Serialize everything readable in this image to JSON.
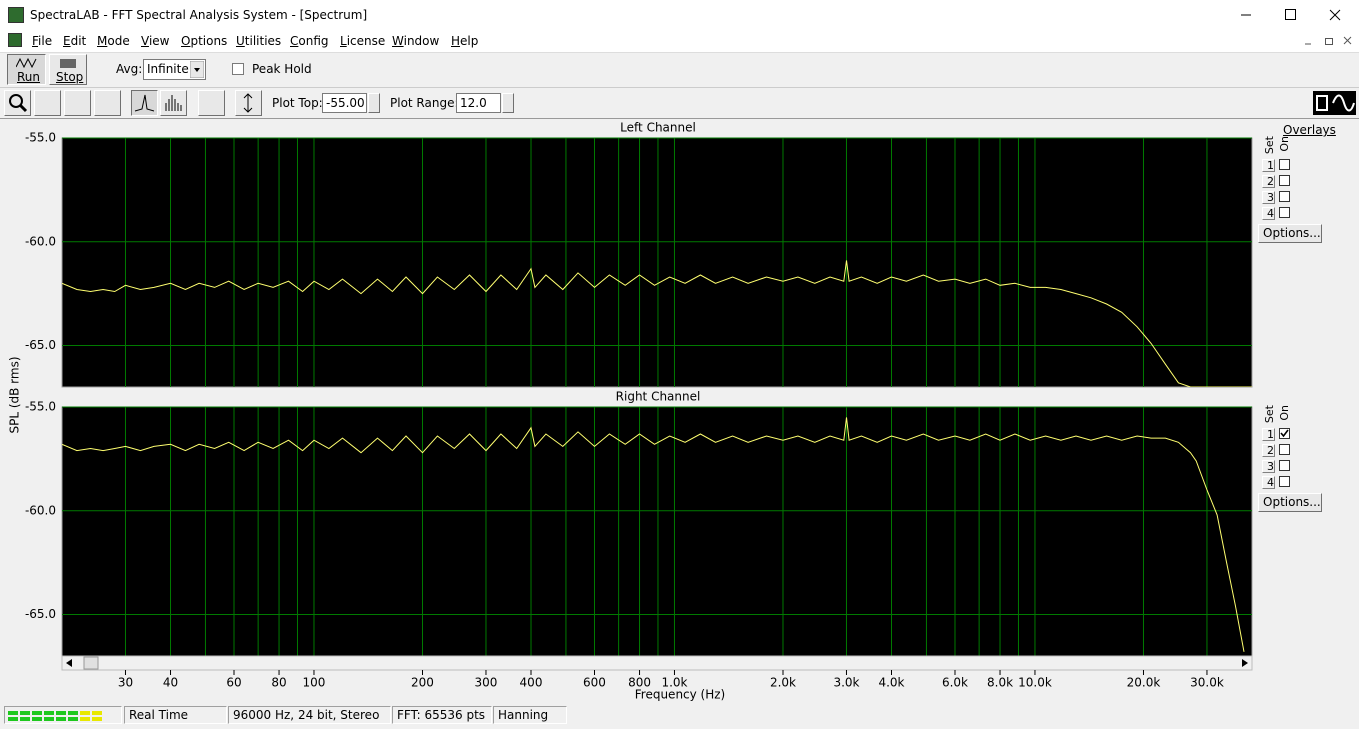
{
  "window": {
    "title": "SpectraLAB - FFT Spectral Analysis System - [Spectrum]"
  },
  "menu": [
    "File",
    "Edit",
    "Mode",
    "View",
    "Options",
    "Utilities",
    "Config",
    "License",
    "Window",
    "Help"
  ],
  "toolbar": {
    "run": "Run",
    "stop": "Stop",
    "avg_label": "Avg:",
    "avg_value": "Infinite",
    "peak_hold": "Peak Hold",
    "plot_top_label": "Plot Top:",
    "plot_top": "-55.00",
    "plot_range_label": "Plot Range:",
    "plot_range": "12.0"
  },
  "plot": {
    "y_label": "SPL (dB rms)"
  },
  "chart_data": [
    {
      "type": "line",
      "title": "Left Channel",
      "x_scale": "log",
      "xlim": [
        20,
        40000
      ],
      "ylim": [
        -67,
        -55
      ],
      "yticks": [
        {
          "value": -55,
          "label": "-55.0"
        },
        {
          "value": -60,
          "label": "-60.0"
        },
        {
          "value": -65,
          "label": "-65.0"
        }
      ],
      "grid": true,
      "background": "#000000",
      "grid_color": "#007a00",
      "x": [
        20,
        22,
        24,
        26,
        28,
        30,
        33,
        36,
        40,
        44,
        48,
        53,
        58,
        64,
        70,
        77,
        85,
        93,
        100,
        110,
        120,
        135,
        150,
        165,
        180,
        200,
        220,
        245,
        270,
        300,
        330,
        365,
        400,
        410,
        440,
        490,
        540,
        600,
        660,
        730,
        800,
        880,
        970,
        1070,
        1180,
        1300,
        1450,
        1600,
        1800,
        2000,
        2200,
        2450,
        2700,
        2950,
        3000,
        3050,
        3300,
        3650,
        4000,
        4400,
        4900,
        5400,
        6000,
        6600,
        7300,
        8000,
        8800,
        9700,
        10700,
        11800,
        13000,
        14300,
        15800,
        17400,
        19200,
        21000,
        23000,
        25000,
        27000,
        28000,
        30000,
        32000,
        34000,
        36000,
        38000,
        40000
      ],
      "series": [
        {
          "color": "#ffff70",
          "values": [
            -62.0,
            -62.3,
            -62.4,
            -62.3,
            -62.4,
            -62.1,
            -62.3,
            -62.2,
            -62.0,
            -62.3,
            -62.0,
            -62.2,
            -61.9,
            -62.3,
            -62.0,
            -62.2,
            -61.9,
            -62.4,
            -61.9,
            -62.3,
            -61.8,
            -62.5,
            -61.8,
            -62.4,
            -61.7,
            -62.5,
            -61.7,
            -62.3,
            -61.6,
            -62.4,
            -61.6,
            -62.3,
            -61.3,
            -62.2,
            -61.6,
            -62.3,
            -61.5,
            -62.2,
            -61.6,
            -62.1,
            -61.6,
            -62.1,
            -61.7,
            -62.0,
            -61.6,
            -62.0,
            -61.7,
            -62.0,
            -61.7,
            -61.9,
            -61.7,
            -62.0,
            -61.7,
            -61.9,
            -60.9,
            -61.9,
            -61.7,
            -62.0,
            -61.7,
            -61.9,
            -61.6,
            -61.9,
            -61.8,
            -62.0,
            -61.8,
            -62.1,
            -62.0,
            -62.2,
            -62.2,
            -62.3,
            -62.5,
            -62.7,
            -63.0,
            -63.4,
            -64.1,
            -64.9,
            -65.9,
            -66.8,
            -67,
            -67,
            -67,
            -67,
            -67,
            -67,
            -67,
            -67
          ]
        }
      ]
    },
    {
      "type": "line",
      "title": "Right Channel",
      "x_scale": "log",
      "xlim": [
        20,
        40000
      ],
      "ylim": [
        -67,
        -55
      ],
      "x_label": "Frequency (Hz)",
      "xticks": [
        30,
        40,
        60,
        80,
        100,
        200,
        300,
        400,
        600,
        800,
        {
          "value": 1000,
          "label": "1.0k"
        },
        {
          "value": 2000,
          "label": "2.0k"
        },
        {
          "value": 3000,
          "label": "3.0k"
        },
        {
          "value": 4000,
          "label": "4.0k"
        },
        {
          "value": 6000,
          "label": "6.0k"
        },
        {
          "value": 8000,
          "label": "8.0k"
        },
        {
          "value": 10000,
          "label": "10.0k"
        },
        {
          "value": 20000,
          "label": "20.0k"
        },
        {
          "value": 30000,
          "label": "30.0k"
        }
      ],
      "xminorticks": [
        50,
        70,
        90,
        500,
        700,
        900,
        5000,
        7000,
        9000
      ],
      "yticks": [
        {
          "value": -55,
          "label": "-55.0"
        },
        {
          "value": -60,
          "label": "-60.0"
        },
        {
          "value": -65,
          "label": "-65.0"
        }
      ],
      "grid": true,
      "background": "#000000",
      "grid_color": "#007a00",
      "x": [
        20,
        22,
        24,
        26,
        28,
        30,
        33,
        36,
        40,
        44,
        48,
        53,
        58,
        64,
        70,
        77,
        85,
        93,
        100,
        110,
        120,
        135,
        150,
        165,
        180,
        200,
        220,
        245,
        270,
        300,
        330,
        365,
        400,
        410,
        440,
        490,
        540,
        600,
        660,
        730,
        800,
        880,
        970,
        1070,
        1180,
        1300,
        1450,
        1600,
        1800,
        2000,
        2200,
        2450,
        2700,
        2950,
        3000,
        3050,
        3300,
        3650,
        4000,
        4400,
        4900,
        5400,
        6000,
        6600,
        7300,
        8000,
        8800,
        9700,
        10700,
        11800,
        13000,
        14300,
        15800,
        17400,
        19200,
        21000,
        23000,
        25000,
        27000,
        28000,
        30000,
        32000,
        34000,
        36000,
        38000,
        40000
      ],
      "series": [
        {
          "color": "#ffff70",
          "values": [
            -56.8,
            -57.1,
            -57.0,
            -57.1,
            -57.0,
            -56.9,
            -57.1,
            -56.9,
            -56.8,
            -57.1,
            -56.8,
            -57.0,
            -56.7,
            -57.1,
            -56.7,
            -57.0,
            -56.6,
            -57.1,
            -56.6,
            -57.0,
            -56.5,
            -57.2,
            -56.5,
            -57.1,
            -56.4,
            -57.2,
            -56.4,
            -57.0,
            -56.3,
            -57.1,
            -56.3,
            -57.0,
            -56.0,
            -56.9,
            -56.3,
            -56.9,
            -56.2,
            -56.9,
            -56.3,
            -56.8,
            -56.3,
            -56.8,
            -56.4,
            -56.7,
            -56.3,
            -56.7,
            -56.4,
            -56.7,
            -56.4,
            -56.6,
            -56.4,
            -56.7,
            -56.4,
            -56.6,
            -55.5,
            -56.6,
            -56.4,
            -56.7,
            -56.4,
            -56.6,
            -56.3,
            -56.6,
            -56.4,
            -56.6,
            -56.3,
            -56.6,
            -56.3,
            -56.6,
            -56.4,
            -56.6,
            -56.4,
            -56.6,
            -56.4,
            -56.6,
            -56.4,
            -56.5,
            -56.5,
            -56.7,
            -57.2,
            -57.6,
            -59.0,
            -60.2,
            -62.5,
            -64.6,
            -66.8,
            null
          ]
        }
      ]
    }
  ],
  "overlays": [
    {
      "title": "Overlays",
      "set_label": "Set",
      "on_label": "On",
      "sets": [
        {
          "label": "1",
          "on": false
        },
        {
          "label": "2",
          "on": false
        },
        {
          "label": "3",
          "on": false
        },
        {
          "label": "4",
          "on": false
        }
      ],
      "options": "Options..."
    },
    {
      "set_label": "Set",
      "on_label": "On",
      "sets": [
        {
          "label": "1",
          "on": true
        },
        {
          "label": "2",
          "on": false
        },
        {
          "label": "3",
          "on": false
        },
        {
          "label": "4",
          "on": false
        }
      ],
      "options": "Options..."
    }
  ],
  "status_bar": {
    "mode": "Real Time",
    "format": "96000 Hz, 24 bit, Stereo",
    "fft": "FFT: 65536 pts",
    "window": "Hanning"
  }
}
